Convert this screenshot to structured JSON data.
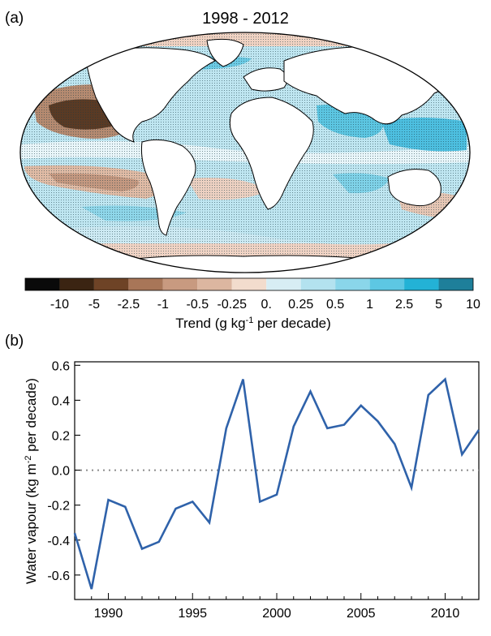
{
  "panel_a": {
    "label": "(a)",
    "title": "1998 - 2012",
    "colorbar": {
      "ticks": [
        "-10",
        "-5",
        "-2.5",
        "-1",
        "-0.5",
        "-0.25",
        "0.",
        "0.25",
        "0.5",
        "1",
        "2.5",
        "5",
        "10"
      ],
      "colors": [
        "#0a0a0a",
        "#3b2412",
        "#6e4326",
        "#a87658",
        "#c89a80",
        "#dcb6a0",
        "#f2dccd",
        "#d7edf4",
        "#b3e2ef",
        "#8ad6ea",
        "#5dc7e3",
        "#23b2d6",
        "#1e7f9a"
      ],
      "label_main": "Trend (g kg",
      "label_sup": "-1",
      "label_tail": " per decade)"
    }
  },
  "panel_b": {
    "label": "(b)",
    "ylabel_main": "Water vapour (kg m",
    "ylabel_sup": "-2",
    "ylabel_tail": " per decade)"
  },
  "chart_data": {
    "type": "line",
    "x": [
      1988,
      1989,
      1990,
      1991,
      1992,
      1993,
      1994,
      1995,
      1996,
      1997,
      1998,
      1999,
      2000,
      2001,
      2002,
      2003,
      2004,
      2005,
      2006,
      2007,
      2008,
      2009,
      2010,
      2011,
      2012
    ],
    "series": [
      {
        "values": [
          -0.36,
          -0.68,
          -0.17,
          -0.21,
          -0.45,
          -0.41,
          -0.22,
          -0.18,
          -0.3,
          0.24,
          0.52,
          -0.18,
          -0.14,
          0.25,
          0.45,
          0.24,
          0.26,
          0.37,
          0.28,
          0.15,
          -0.1,
          0.43,
          0.52,
          0.09,
          0.23
        ]
      }
    ],
    "xlim": [
      1988,
      2012
    ],
    "ylim": [
      -0.74,
      0.62
    ],
    "xticks": [
      1990,
      1995,
      2000,
      2005,
      2010
    ],
    "yticks": [
      -0.6,
      -0.4,
      -0.2,
      0.0,
      0.2,
      0.4,
      0.6
    ],
    "ytick_labels": [
      "-0.6",
      "-0.4",
      "-0.2",
      "0.0",
      "0.2",
      "0.4",
      "0.6"
    ],
    "reference_line": 0.0,
    "line_color": "#2f62aa",
    "reference_color": "#8c8c8c"
  }
}
